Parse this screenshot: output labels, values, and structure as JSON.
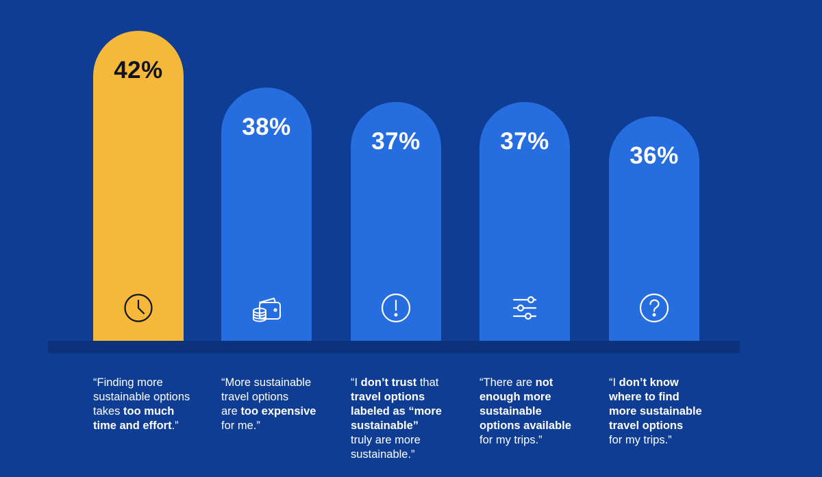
{
  "chart_data": {
    "type": "bar",
    "categories": [
      "Finding more sustainable options takes too much time and effort",
      "More sustainable travel options are too expensive for me",
      "I don't trust that travel options labeled as more sustainable truly are more sustainable",
      "There are not enough more sustainable options available for my trips",
      "I don't know where to find more sustainable travel options for my trips"
    ],
    "values": [
      42,
      38,
      37,
      37,
      36
    ],
    "value_labels": [
      "42%",
      "38%",
      "37%",
      "37%",
      "36%"
    ],
    "ylim": [
      0,
      42
    ],
    "grid": false,
    "highlight_index": 0,
    "icons": [
      "clock-icon",
      "wallet-coins-icon",
      "exclamation-circle-icon",
      "sliders-icon",
      "question-circle-icon"
    ],
    "colors": {
      "background": "#0f3d93",
      "bar": "#266ddf",
      "highlight": "#f6b83b",
      "baseline": "#0b327a",
      "text": "#ffffff",
      "highlight_text": "#10141f"
    },
    "captions": [
      [
        {
          "text": "“Finding more",
          "bold": false
        },
        {
          "text": "\n",
          "bold": false
        },
        {
          "text": "sustainable options",
          "bold": false
        },
        {
          "text": "\n",
          "bold": false
        },
        {
          "text": "takes ",
          "bold": false
        },
        {
          "text": "too much",
          "bold": true
        },
        {
          "text": "\n",
          "bold": false
        },
        {
          "text": "time and effort",
          "bold": true
        },
        {
          "text": ".”",
          "bold": false
        }
      ],
      [
        {
          "text": "“More sustainable",
          "bold": false
        },
        {
          "text": "\n",
          "bold": false
        },
        {
          "text": "travel options",
          "bold": false
        },
        {
          "text": "\n",
          "bold": false
        },
        {
          "text": "are ",
          "bold": false
        },
        {
          "text": "too expensive",
          "bold": true
        },
        {
          "text": "\n",
          "bold": false
        },
        {
          "text": "for me.”",
          "bold": false
        }
      ],
      [
        {
          "text": "“I ",
          "bold": false
        },
        {
          "text": "don’t trust",
          "bold": true
        },
        {
          "text": " that",
          "bold": false
        },
        {
          "text": "\n",
          "bold": false
        },
        {
          "text": "travel options",
          "bold": true
        },
        {
          "text": "\n",
          "bold": false
        },
        {
          "text": "labeled as “more",
          "bold": true
        },
        {
          "text": "\n",
          "bold": false
        },
        {
          "text": "sustainable”",
          "bold": true
        },
        {
          "text": "\n",
          "bold": false
        },
        {
          "text": "truly are more",
          "bold": false
        },
        {
          "text": "\n",
          "bold": false
        },
        {
          "text": "sustainable.”",
          "bold": false
        }
      ],
      [
        {
          "text": "“There are ",
          "bold": false
        },
        {
          "text": "not",
          "bold": true
        },
        {
          "text": "\n",
          "bold": false
        },
        {
          "text": "enough more",
          "bold": true
        },
        {
          "text": "\n",
          "bold": false
        },
        {
          "text": "sustainable",
          "bold": true
        },
        {
          "text": "\n",
          "bold": false
        },
        {
          "text": "options available",
          "bold": true
        },
        {
          "text": "\n",
          "bold": false
        },
        {
          "text": "for my trips.”",
          "bold": false
        }
      ],
      [
        {
          "text": "“I ",
          "bold": false
        },
        {
          "text": "don’t know",
          "bold": true
        },
        {
          "text": "\n",
          "bold": false
        },
        {
          "text": "where to find",
          "bold": true
        },
        {
          "text": "\n",
          "bold": false
        },
        {
          "text": "more sustainable",
          "bold": true
        },
        {
          "text": "\n",
          "bold": false
        },
        {
          "text": "travel options",
          "bold": true
        },
        {
          "text": "\n",
          "bold": false
        },
        {
          "text": "for my trips.”",
          "bold": false
        }
      ]
    ]
  }
}
